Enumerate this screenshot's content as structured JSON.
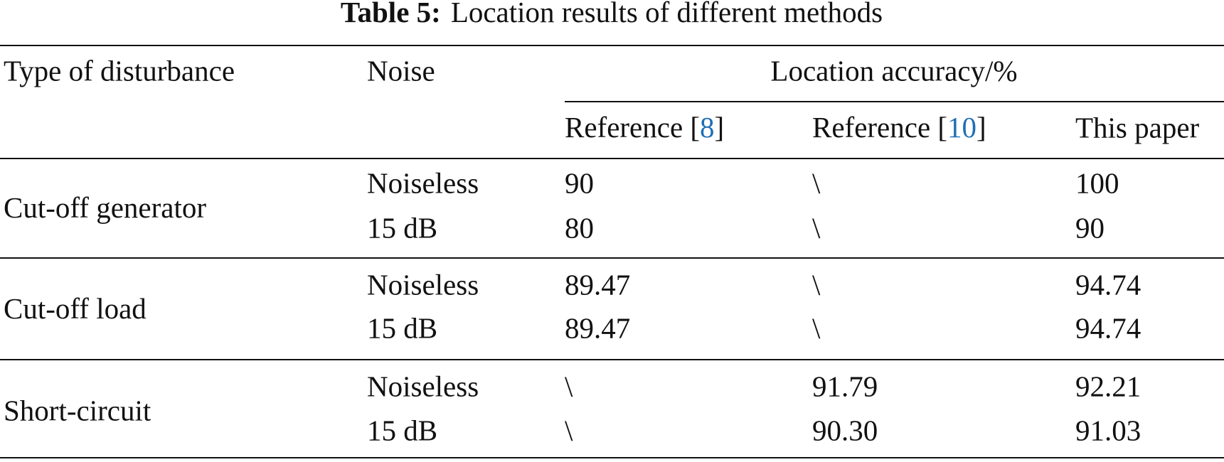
{
  "header": {
    "caption_label": "Table 5:",
    "caption_text": "Location results of different methods"
  },
  "table": {
    "header_row1": [
      "Type of disturbance",
      "Noise",
      "Location accuracy/%"
    ],
    "header_row2": [
      {
        "prefix": "Reference [",
        "ref": "8",
        "suffix": "]"
      },
      {
        "prefix": "Reference [",
        "ref": "10",
        "suffix": "]"
      },
      {
        "text": "This paper"
      }
    ],
    "groups": [
      {
        "disturbance": "Cut-off generator",
        "rows": [
          [
            "Noiseless",
            "90",
            "\\",
            "100"
          ],
          [
            "15 dB",
            "80",
            "\\",
            "90"
          ]
        ]
      },
      {
        "disturbance": "Cut-off load",
        "rows": [
          [
            "Noiseless",
            "89.47",
            "\\",
            "94.74"
          ],
          [
            "15 dB",
            "89.47",
            "\\",
            "94.74"
          ]
        ]
      },
      {
        "disturbance": "Short-circuit",
        "rows": [
          [
            "Noiseless",
            "\\",
            "91.79",
            "92.21"
          ],
          [
            "15 dB",
            "\\",
            "90.30",
            "91.03"
          ]
        ]
      }
    ]
  }
}
